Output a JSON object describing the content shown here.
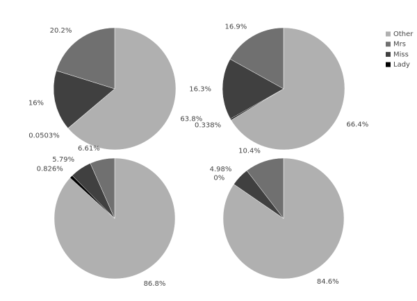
{
  "chart_data": [
    {
      "type": "pie",
      "categories": [
        "Other",
        "Mrs",
        "Miss",
        "Lady"
      ],
      "colors": [
        "#b0b0b0",
        "#707070",
        "#404040",
        "#000000"
      ],
      "values": [
        63.8,
        20.2,
        16,
        0.0503
      ],
      "value_labels": [
        "63.8%",
        "20.2%",
        "16%",
        "0.0503%"
      ]
    },
    {
      "type": "pie",
      "categories": [
        "Other",
        "Mrs",
        "Miss",
        "Lady"
      ],
      "colors": [
        "#b0b0b0",
        "#707070",
        "#404040",
        "#000000"
      ],
      "values": [
        66.4,
        16.9,
        16.3,
        0.338
      ],
      "value_labels": [
        "66.4%",
        "16.9%",
        "16.3%",
        "0.338%"
      ]
    },
    {
      "type": "pie",
      "categories": [
        "Other",
        "Mrs",
        "Miss",
        "Lady"
      ],
      "colors": [
        "#b0b0b0",
        "#707070",
        "#404040",
        "#000000"
      ],
      "values": [
        86.8,
        6.61,
        5.79,
        0.826
      ],
      "value_labels": [
        "86.8%",
        "6.61%",
        "5.79%",
        "0.826%"
      ]
    },
    {
      "type": "pie",
      "categories": [
        "Other",
        "Mrs",
        "Miss",
        "Lady"
      ],
      "colors": [
        "#b0b0b0",
        "#707070",
        "#404040",
        "#000000"
      ],
      "values": [
        84.6,
        10.4,
        4.98,
        0
      ],
      "value_labels": [
        "84.6%",
        "10.4%",
        "4.98%",
        "0%"
      ]
    }
  ]
}
